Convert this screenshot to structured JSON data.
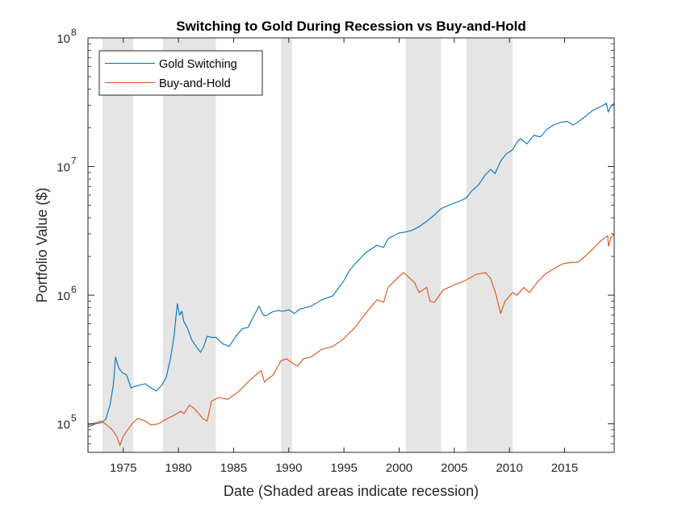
{
  "chart_data": {
    "type": "line",
    "title": "Switching to Gold During Recession vs Buy-and-Hold",
    "xlabel": "Date (Shaded areas indicate recession)",
    "ylabel": "Portfolio Value ($)",
    "yscale": "log",
    "xlim": [
      1971.8,
      2019.5
    ],
    "ylim": [
      60000,
      100000000
    ],
    "x_ticks": [
      1975,
      1980,
      1985,
      1990,
      1995,
      2000,
      2005,
      2010,
      2015
    ],
    "y_ticks": [
      {
        "value": 100000,
        "base": "10",
        "exp": "5"
      },
      {
        "value": 1000000,
        "base": "10",
        "exp": "6"
      },
      {
        "value": 10000000,
        "base": "10",
        "exp": "7"
      },
      {
        "value": 100000000,
        "base": "10",
        "exp": "8"
      }
    ],
    "grid": false,
    "legend_position": "top-left",
    "recessions": [
      [
        1973.1,
        1975.9
      ],
      [
        1978.6,
        1983.4
      ],
      [
        1989.3,
        1990.3
      ],
      [
        2000.6,
        2003.8
      ],
      [
        2006.1,
        2010.3
      ]
    ],
    "series": [
      {
        "name": "Gold Switching",
        "color": "#0072BD",
        "x": [
          1971.8,
          1972.5,
          1973.0,
          1973.4,
          1973.8,
          1974.1,
          1974.3,
          1974.6,
          1974.9,
          1975.3,
          1975.7,
          1976.0,
          1976.5,
          1977.0,
          1977.5,
          1978.0,
          1978.5,
          1978.9,
          1979.3,
          1979.6,
          1979.9,
          1980.1,
          1980.3,
          1980.5,
          1980.8,
          1981.2,
          1981.6,
          1982.0,
          1982.3,
          1982.6,
          1983.0,
          1983.4,
          1984.0,
          1984.6,
          1985.2,
          1985.8,
          1986.3,
          1986.8,
          1987.3,
          1987.7,
          1987.9,
          1988.5,
          1989.0,
          1989.5,
          1990.0,
          1990.5,
          1991.0,
          1992.0,
          1993.0,
          1994.0,
          1995.0,
          1995.5,
          1996.0,
          1997.0,
          1998.0,
          1998.6,
          1999.0,
          2000.0,
          2000.6,
          2001.2,
          2001.8,
          2002.5,
          2003.2,
          2003.8,
          2004.5,
          2005.5,
          2006.1,
          2006.6,
          2007.2,
          2007.8,
          2008.3,
          2008.7,
          2009.2,
          2009.7,
          2010.3,
          2010.7,
          2011.0,
          2011.6,
          2012.2,
          2012.8,
          2013.4,
          2014.0,
          2014.6,
          2015.2,
          2015.8,
          2016.3,
          2017.0,
          2017.6,
          2018.2,
          2018.8,
          2018.95,
          2019.2,
          2019.5
        ],
        "y": [
          95000,
          100000,
          102000,
          108000,
          140000,
          200000,
          330000,
          270000,
          250000,
          240000,
          190000,
          195000,
          200000,
          205000,
          190000,
          180000,
          200000,
          230000,
          330000,
          480000,
          860000,
          700000,
          750000,
          620000,
          560000,
          450000,
          400000,
          360000,
          400000,
          480000,
          470000,
          470000,
          420000,
          400000,
          480000,
          550000,
          560000,
          680000,
          820000,
          700000,
          690000,
          740000,
          760000,
          750000,
          770000,
          720000,
          780000,
          820000,
          920000,
          990000,
          1300000,
          1550000,
          1750000,
          2150000,
          2450000,
          2350000,
          2750000,
          3050000,
          3100000,
          3200000,
          3400000,
          3750000,
          4200000,
          4700000,
          5000000,
          5400000,
          5700000,
          6500000,
          7200000,
          8600000,
          9500000,
          8800000,
          11000000,
          12500000,
          13500000,
          15500000,
          16500000,
          15000000,
          17500000,
          17000000,
          19500000,
          21000000,
          22000000,
          22500000,
          21000000,
          22500000,
          25000000,
          27500000,
          29000000,
          31000000,
          26500000,
          29500000,
          31000000
        ]
      },
      {
        "name": "Buy-and-Hold",
        "color": "#D95319",
        "x": [
          1971.8,
          1972.5,
          1973.0,
          1973.5,
          1974.0,
          1974.4,
          1974.7,
          1975.0,
          1975.4,
          1975.8,
          1976.3,
          1977.0,
          1977.5,
          1978.2,
          1978.8,
          1979.5,
          1980.2,
          1980.5,
          1981.0,
          1981.5,
          1982.2,
          1982.6,
          1983.0,
          1983.6,
          1984.5,
          1985.5,
          1986.5,
          1987.5,
          1987.8,
          1988.0,
          1988.6,
          1989.3,
          1989.8,
          1990.5,
          1990.8,
          1991.3,
          1992.0,
          1993.0,
          1994.0,
          1995.0,
          1996.0,
          1997.0,
          1998.0,
          1998.6,
          1999.0,
          2000.0,
          2000.4,
          2000.8,
          2001.4,
          2001.8,
          2002.5,
          2002.8,
          2003.2,
          2004.0,
          2005.0,
          2006.0,
          2007.0,
          2007.8,
          2008.3,
          2008.8,
          2009.2,
          2009.6,
          2010.3,
          2010.7,
          2011.3,
          2011.8,
          2012.5,
          2013.2,
          2014.0,
          2014.8,
          2015.6,
          2016.2,
          2017.0,
          2017.8,
          2018.4,
          2018.9,
          2018.98,
          2019.2,
          2019.5
        ],
        "y": [
          98000,
          102000,
          105000,
          98000,
          90000,
          80000,
          68000,
          80000,
          90000,
          100000,
          110000,
          105000,
          98000,
          100000,
          108000,
          115000,
          125000,
          120000,
          140000,
          130000,
          110000,
          105000,
          150000,
          160000,
          155000,
          180000,
          220000,
          260000,
          210000,
          220000,
          240000,
          310000,
          320000,
          290000,
          280000,
          320000,
          330000,
          380000,
          400000,
          460000,
          560000,
          730000,
          920000,
          880000,
          1150000,
          1400000,
          1500000,
          1400000,
          1250000,
          1050000,
          1150000,
          900000,
          880000,
          1100000,
          1200000,
          1300000,
          1450000,
          1500000,
          1350000,
          1000000,
          720000,
          900000,
          1050000,
          1000000,
          1150000,
          1050000,
          1250000,
          1450000,
          1600000,
          1750000,
          1800000,
          1800000,
          2050000,
          2400000,
          2700000,
          2900000,
          2400000,
          2800000,
          3000000
        ]
      }
    ]
  }
}
